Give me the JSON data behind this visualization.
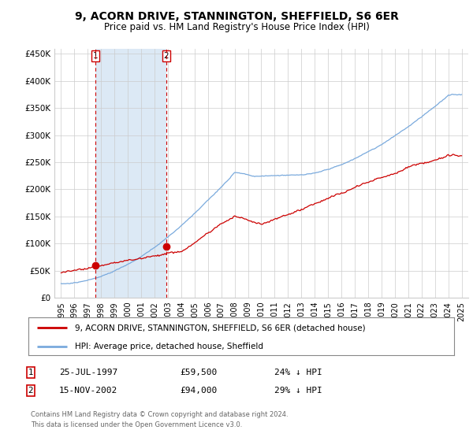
{
  "title": "9, ACORN DRIVE, STANNINGTON, SHEFFIELD, S6 6ER",
  "subtitle": "Price paid vs. HM Land Registry's House Price Index (HPI)",
  "hpi_color": "#7aaadd",
  "price_color": "#cc0000",
  "dot_color": "#cc0000",
  "shade_color": "#dce9f5",
  "plot_bg": "#ffffff",
  "grid_color": "#cccccc",
  "ylim": [
    0,
    460000
  ],
  "yticks": [
    0,
    50000,
    100000,
    150000,
    200000,
    250000,
    300000,
    350000,
    400000,
    450000
  ],
  "ytick_labels": [
    "£0",
    "£50K",
    "£100K",
    "£150K",
    "£200K",
    "£250K",
    "£300K",
    "£350K",
    "£400K",
    "£450K"
  ],
  "sale1_date": "25-JUL-1997",
  "sale1_price": 59500,
  "sale1_hpi_pct": "24% ↓ HPI",
  "sale1_label": "1",
  "sale1_x": 1997.57,
  "sale2_date": "15-NOV-2002",
  "sale2_price": 94000,
  "sale2_hpi_pct": "29% ↓ HPI",
  "sale2_label": "2",
  "sale2_x": 2002.88,
  "legend_line1": "9, ACORN DRIVE, STANNINGTON, SHEFFIELD, S6 6ER (detached house)",
  "legend_line2": "HPI: Average price, detached house, Sheffield",
  "footer1": "Contains HM Land Registry data © Crown copyright and database right 2024.",
  "footer2": "This data is licensed under the Open Government Licence v3.0.",
  "xlim_left": 1994.5,
  "xlim_right": 2025.5
}
